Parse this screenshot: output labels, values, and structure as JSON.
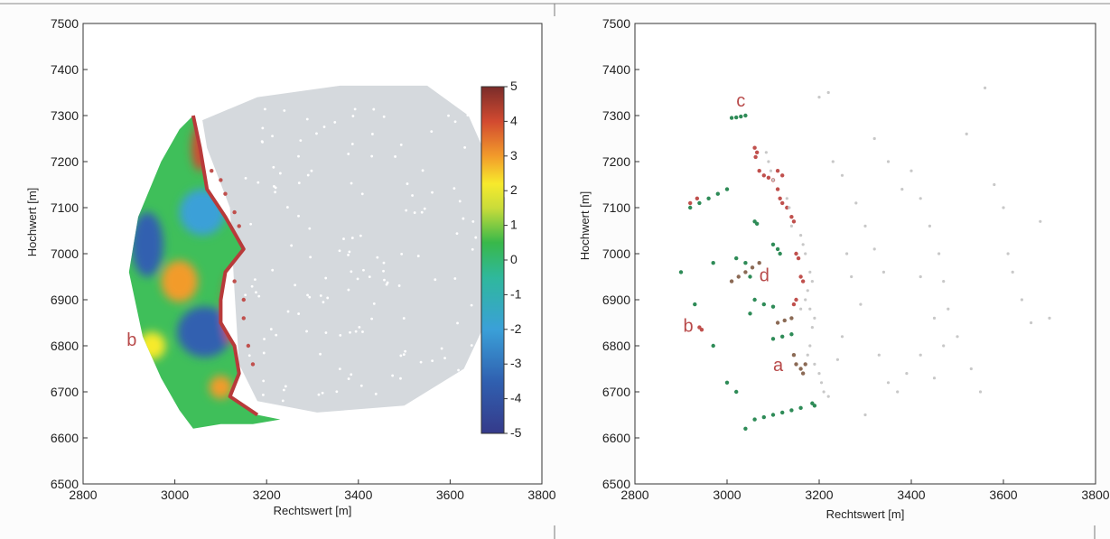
{
  "chart_data": [
    {
      "type": "heatmap",
      "panel": "left",
      "xlabel": "Rechtswert [m]",
      "ylabel": "Hochwert [m]",
      "xlim": [
        2800,
        3800
      ],
      "ylim": [
        6500,
        7500
      ],
      "xticks": [
        "2800",
        "3000",
        "3200",
        "3400",
        "3600",
        "3800"
      ],
      "yticks": [
        "6500",
        "6600",
        "6700",
        "6800",
        "6900",
        "7000",
        "7100",
        "7200",
        "7300",
        "7400",
        "7500"
      ],
      "colorbar": {
        "range": [
          -5,
          5
        ],
        "ticks": [
          "5",
          "4",
          "3",
          "2",
          "1",
          "0",
          "-1",
          "-2",
          "-3",
          "-4",
          "-5"
        ]
      },
      "survey_hull": [
        [
          3060,
          7290
        ],
        [
          3180,
          7340
        ],
        [
          3360,
          7365
        ],
        [
          3550,
          7365
        ],
        [
          3640,
          7300
        ],
        [
          3720,
          7120
        ],
        [
          3710,
          6920
        ],
        [
          3630,
          6750
        ],
        [
          3500,
          6670
        ],
        [
          3310,
          6655
        ],
        [
          3180,
          6680
        ],
        [
          3140,
          6760
        ],
        [
          3130,
          6920
        ],
        [
          3120,
          7100
        ],
        [
          3070,
          7230
        ]
      ],
      "field_polygon": [
        [
          3040,
          7300
        ],
        [
          3055,
          7230
        ],
        [
          3070,
          7140
        ],
        [
          3110,
          7080
        ],
        [
          3150,
          7010
        ],
        [
          3110,
          6960
        ],
        [
          3100,
          6900
        ],
        [
          3100,
          6850
        ],
        [
          3130,
          6800
        ],
        [
          3140,
          6740
        ],
        [
          3120,
          6690
        ],
        [
          3180,
          6650
        ],
        [
          3230,
          6640
        ],
        [
          3170,
          6630
        ],
        [
          3100,
          6630
        ],
        [
          3040,
          6620
        ],
        [
          3010,
          6660
        ],
        [
          2970,
          6730
        ],
        [
          2930,
          6820
        ],
        [
          2900,
          6960
        ],
        [
          2920,
          7080
        ],
        [
          2970,
          7200
        ],
        [
          3010,
          7270
        ]
      ],
      "anomalies": [
        {
          "x": 2940,
          "y": 7020,
          "rx": 35,
          "ry": 70,
          "value": -3.5
        },
        {
          "x": 3060,
          "y": 7090,
          "rx": 50,
          "ry": 50,
          "value": -2.0
        },
        {
          "x": 3010,
          "y": 6940,
          "rx": 40,
          "ry": 45,
          "value": 3.5
        },
        {
          "x": 3065,
          "y": 6830,
          "rx": 60,
          "ry": 55,
          "value": -2.5
        },
        {
          "x": 2950,
          "y": 6800,
          "rx": 30,
          "ry": 30,
          "value": 2.5
        },
        {
          "x": 3055,
          "y": 7230,
          "rx": 18,
          "ry": 50,
          "value": 4.0
        },
        {
          "x": 3100,
          "y": 6710,
          "rx": 25,
          "ry": 25,
          "value": 3.0
        },
        {
          "x": 3120,
          "y": 6880,
          "rx": 15,
          "ry": 75,
          "value": 4.0
        }
      ],
      "annotations": [
        {
          "text": "b",
          "x": 2895,
          "y": 6800,
          "color": "#b84a4a"
        }
      ]
    },
    {
      "type": "scatter",
      "panel": "right",
      "xlabel": "Rechtswert [m]",
      "ylabel": "Hochwert [m]",
      "xlim": [
        2800,
        3800
      ],
      "ylim": [
        6500,
        7500
      ],
      "xticks": [
        "2800",
        "3000",
        "3200",
        "3400",
        "3600",
        "3800"
      ],
      "yticks": [
        "6500",
        "6600",
        "6700",
        "6800",
        "6900",
        "7000",
        "7100",
        "7200",
        "7300",
        "7400",
        "7500"
      ],
      "series": [
        {
          "color": "#2e8b57",
          "points": [
            [
              3010,
              7295
            ],
            [
              3020,
              7296
            ],
            [
              3030,
              7298
            ],
            [
              3040,
              7300
            ],
            [
              2920,
              7100
            ],
            [
              2940,
              7110
            ],
            [
              2960,
              7120
            ],
            [
              2980,
              7130
            ],
            [
              3000,
              7140
            ],
            [
              3060,
              7070
            ],
            [
              3065,
              7065
            ],
            [
              3100,
              7020
            ],
            [
              3110,
              7010
            ],
            [
              3115,
              7000
            ],
            [
              3020,
              6990
            ],
            [
              3040,
              6980
            ],
            [
              2970,
              6980
            ],
            [
              2900,
              6960
            ],
            [
              3050,
              6950
            ],
            [
              2930,
              6890
            ],
            [
              3060,
              6900
            ],
            [
              3080,
              6890
            ],
            [
              3100,
              6885
            ],
            [
              3050,
              6870
            ],
            [
              3100,
              6815
            ],
            [
              3120,
              6820
            ],
            [
              3140,
              6825
            ],
            [
              3000,
              6720
            ],
            [
              3020,
              6700
            ],
            [
              3060,
              6640
            ],
            [
              3080,
              6645
            ],
            [
              3100,
              6650
            ],
            [
              3120,
              6655
            ],
            [
              3140,
              6660
            ],
            [
              3160,
              6665
            ],
            [
              3185,
              6675
            ],
            [
              3190,
              6670
            ],
            [
              3040,
              6620
            ],
            [
              2970,
              6800
            ]
          ]
        },
        {
          "color": "#c0504d",
          "points": [
            [
              3060,
              7230
            ],
            [
              3065,
              7220
            ],
            [
              3062,
              7210
            ],
            [
              3070,
              7180
            ],
            [
              3080,
              7170
            ],
            [
              3090,
              7165
            ],
            [
              3100,
              7160
            ],
            [
              3110,
              7140
            ],
            [
              3115,
              7120
            ],
            [
              3120,
              7110
            ],
            [
              3130,
              7100
            ],
            [
              3140,
              7080
            ],
            [
              3145,
              7070
            ],
            [
              3150,
              7000
            ],
            [
              3155,
              6990
            ],
            [
              3160,
              6950
            ],
            [
              3165,
              6940
            ],
            [
              3145,
              6890
            ],
            [
              3150,
              6900
            ],
            [
              3110,
              7180
            ],
            [
              3120,
              7170
            ],
            [
              2920,
              7110
            ],
            [
              2935,
              7120
            ],
            [
              2940,
              6840
            ],
            [
              2945,
              6835
            ]
          ]
        },
        {
          "color": "#8b6a55",
          "points": [
            [
              3010,
              6940
            ],
            [
              3025,
              6950
            ],
            [
              3040,
              6960
            ],
            [
              3055,
              6970
            ],
            [
              3070,
              6980
            ],
            [
              3110,
              6850
            ],
            [
              3125,
              6855
            ],
            [
              3140,
              6860
            ],
            [
              3145,
              6780
            ],
            [
              3150,
              6760
            ],
            [
              3160,
              6750
            ],
            [
              3165,
              6740
            ],
            [
              3170,
              6760
            ]
          ]
        },
        {
          "color": "#c8c8c8",
          "points": [
            [
              3085,
              7220
            ],
            [
              3090,
              7200
            ],
            [
              3095,
              7180
            ],
            [
              3100,
              7160
            ],
            [
              3130,
              7120
            ],
            [
              3135,
              7100
            ],
            [
              3140,
              7060
            ],
            [
              3160,
              7040
            ],
            [
              3165,
              7020
            ],
            [
              3170,
              7000
            ],
            [
              3180,
              6960
            ],
            [
              3185,
              6940
            ],
            [
              3175,
              6920
            ],
            [
              3170,
              6900
            ],
            [
              3160,
              6880
            ],
            [
              3180,
              6880
            ],
            [
              3190,
              6860
            ],
            [
              3185,
              6840
            ],
            [
              3180,
              6800
            ],
            [
              3175,
              6780
            ],
            [
              3190,
              6760
            ],
            [
              3200,
              6740
            ],
            [
              3205,
              6720
            ],
            [
              3210,
              6700
            ],
            [
              3220,
              6690
            ],
            [
              3200,
              7340
            ],
            [
              3220,
              7350
            ],
            [
              3230,
              7200
            ],
            [
              3250,
              7170
            ],
            [
              3280,
              7110
            ],
            [
              3300,
              7060
            ],
            [
              3320,
              7010
            ],
            [
              3340,
              6960
            ],
            [
              3260,
              7000
            ],
            [
              3270,
              6950
            ],
            [
              3290,
              6890
            ],
            [
              3330,
              6780
            ],
            [
              3350,
              6720
            ],
            [
              3370,
              6700
            ],
            [
              3400,
              7180
            ],
            [
              3420,
              7120
            ],
            [
              3440,
              7060
            ],
            [
              3460,
              7000
            ],
            [
              3470,
              6940
            ],
            [
              3480,
              6880
            ],
            [
              3500,
              6820
            ],
            [
              3530,
              6750
            ],
            [
              3550,
              6700
            ],
            [
              3420,
              6950
            ],
            [
              3450,
              6860
            ],
            [
              3470,
              6800
            ],
            [
              3520,
              7260
            ],
            [
              3560,
              7360
            ],
            [
              3580,
              7150
            ],
            [
              3600,
              7100
            ],
            [
              3610,
              7000
            ],
            [
              3620,
              6960
            ],
            [
              3640,
              6900
            ],
            [
              3660,
              6850
            ],
            [
              3680,
              7070
            ],
            [
              3700,
              6860
            ],
            [
              3320,
              7250
            ],
            [
              3350,
              7200
            ],
            [
              3380,
              7140
            ],
            [
              3420,
              6780
            ],
            [
              3390,
              6740
            ],
            [
              3250,
              6820
            ],
            [
              3240,
              6770
            ],
            [
              3300,
              6650
            ],
            [
              3450,
              6730
            ]
          ]
        }
      ],
      "annotations": [
        {
          "text": "c",
          "x": 3020,
          "y": 7320,
          "color": "#b84a4a"
        },
        {
          "text": "d",
          "x": 3070,
          "y": 6940,
          "color": "#b84a4a"
        },
        {
          "text": "b",
          "x": 2905,
          "y": 6830,
          "color": "#b84a4a"
        },
        {
          "text": "a",
          "x": 3100,
          "y": 6745,
          "color": "#b84a4a"
        }
      ]
    }
  ]
}
